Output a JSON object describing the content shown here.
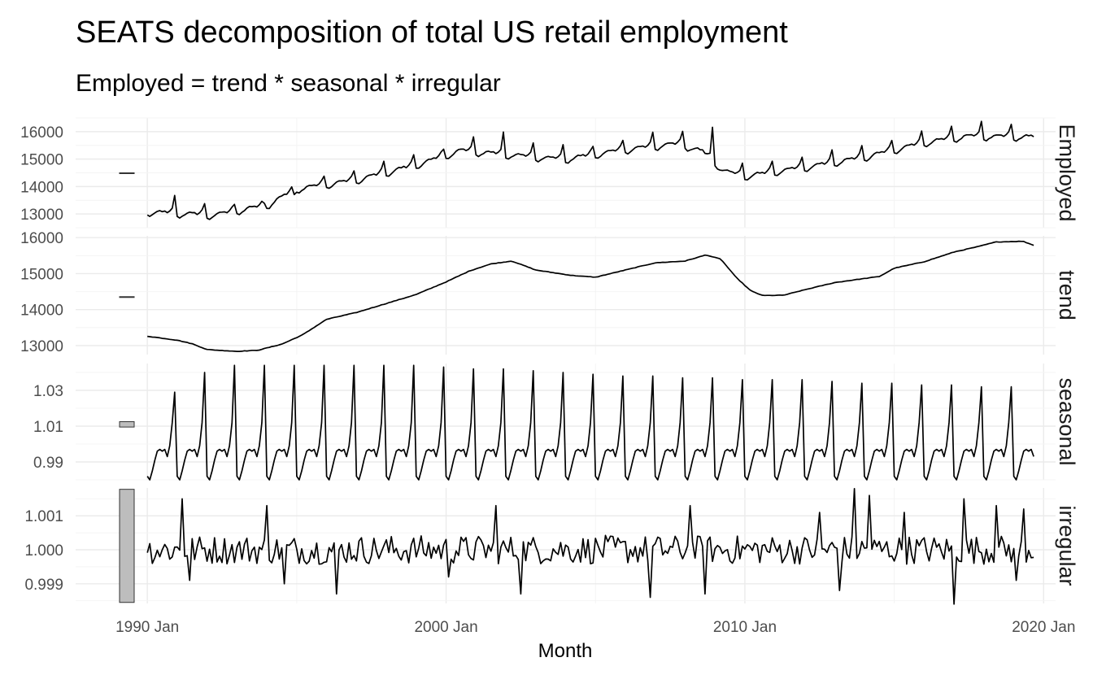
{
  "chart_data": {
    "type": "line",
    "title": "SEATS decomposition of total US retail employment",
    "subtitle": "Employed = trend * seasonal * irregular",
    "xlabel": "Month",
    "x_ticks": [
      "1990 Jan",
      "2000 Jan",
      "2010 Jan",
      "2020 Jan"
    ],
    "x_tick_years": [
      1990,
      2000,
      2010,
      2020
    ],
    "xlim": [
      1987.6,
      2020.4
    ],
    "x_start": "1990 Jan",
    "x_end": "2019 Sep",
    "grid": true,
    "legend": "none",
    "line_color": "#000000",
    "scale_bar_color": "#bdbdbd",
    "panels": [
      {
        "name": "Employed",
        "ylim": [
          12500,
          16500
        ],
        "y_ticks": [
          13000,
          14000,
          15000,
          16000
        ],
        "y_tick_labels": [
          "13000",
          "14000",
          "15000",
          "16000"
        ],
        "scale_bar": [
          14480,
          14500
        ],
        "level_knots": [
          [
            1990.0,
            12960
          ],
          [
            1992.2,
            12840
          ],
          [
            1994.0,
            13200
          ],
          [
            1995.0,
            13800
          ],
          [
            1997.0,
            14120
          ],
          [
            1999.0,
            14670
          ],
          [
            2000.5,
            15200
          ],
          [
            2002.5,
            15000
          ],
          [
            2004.0,
            14880
          ],
          [
            2006.0,
            15230
          ],
          [
            2007.8,
            15450
          ],
          [
            2008.6,
            15150
          ],
          [
            2009.3,
            14450
          ],
          [
            2010.0,
            14260
          ],
          [
            2012.0,
            14580
          ],
          [
            2014.0,
            14950
          ],
          [
            2016.0,
            15480
          ],
          [
            2017.5,
            15720
          ],
          [
            2019.7,
            15690
          ]
        ],
        "peaks": [
          [
            1990,
            13680
          ],
          [
            1991,
            13380
          ],
          [
            1992,
            13350
          ],
          [
            1993,
            13400
          ],
          [
            1994,
            13720
          ],
          [
            1995,
            14370
          ],
          [
            1996,
            14570
          ],
          [
            1997,
            14920
          ],
          [
            1998,
            15150
          ],
          [
            1999,
            15350
          ],
          [
            2000,
            15800
          ],
          [
            2001,
            15990
          ],
          [
            2002,
            15580
          ],
          [
            2003,
            15530
          ],
          [
            2004,
            15450
          ],
          [
            2005,
            15690
          ],
          [
            2006,
            15980
          ],
          [
            2007,
            16000
          ],
          [
            2008,
            16160
          ],
          [
            2009,
            14850
          ],
          [
            2010,
            14930
          ],
          [
            2011,
            15080
          ],
          [
            2012,
            15330
          ],
          [
            2013,
            15490
          ],
          [
            2014,
            15680
          ],
          [
            2015,
            16030
          ],
          [
            2016,
            16190
          ],
          [
            2017,
            16370
          ],
          [
            2018,
            16260
          ],
          [
            2019,
            16340
          ]
        ]
      },
      {
        "name": "trend",
        "ylim": [
          12750,
          16050
        ],
        "y_ticks": [
          13000,
          14000,
          15000,
          16000
        ],
        "y_tick_labels": [
          "13000",
          "14000",
          "15000",
          "16000"
        ],
        "scale_bar": [
          14340,
          14360
        ],
        "knots": [
          [
            1990.0,
            13260
          ],
          [
            1991.0,
            13150
          ],
          [
            1991.5,
            13050
          ],
          [
            1992.0,
            12890
          ],
          [
            1993.0,
            12840
          ],
          [
            1993.7,
            12870
          ],
          [
            1994.5,
            13040
          ],
          [
            1995.2,
            13300
          ],
          [
            1996.0,
            13730
          ],
          [
            1997.0,
            13920
          ],
          [
            1998.0,
            14170
          ],
          [
            1999.0,
            14420
          ],
          [
            2000.0,
            14770
          ],
          [
            2000.8,
            15080
          ],
          [
            2001.5,
            15270
          ],
          [
            2002.2,
            15350
          ],
          [
            2003.0,
            15100
          ],
          [
            2004.2,
            14950
          ],
          [
            2005.0,
            14900
          ],
          [
            2005.5,
            15000
          ],
          [
            2006.0,
            15100
          ],
          [
            2007.0,
            15300
          ],
          [
            2008.0,
            15350
          ],
          [
            2008.7,
            15520
          ],
          [
            2009.2,
            15400
          ],
          [
            2009.7,
            14900
          ],
          [
            2010.2,
            14520
          ],
          [
            2010.6,
            14390
          ],
          [
            2011.3,
            14400
          ],
          [
            2012.0,
            14550
          ],
          [
            2013.0,
            14750
          ],
          [
            2013.7,
            14830
          ],
          [
            2014.5,
            14920
          ],
          [
            2015.0,
            15150
          ],
          [
            2016.0,
            15330
          ],
          [
            2017.0,
            15600
          ],
          [
            2017.8,
            15750
          ],
          [
            2018.4,
            15880
          ],
          [
            2019.3,
            15900
          ],
          [
            2019.7,
            15780
          ],
          [
            2020.0,
            15750
          ]
        ]
      },
      {
        "name": "seasonal",
        "ylim": [
          0.98,
          1.045
        ],
        "y_ticks": [
          0.99,
          1.01,
          1.03
        ],
        "y_tick_labels": [
          "0.99",
          "1.01",
          "1.03"
        ],
        "scale_bar": [
          1.0095,
          1.0125
        ],
        "peak_by_year": [
          1.029,
          1.04,
          1.044,
          1.044,
          1.044,
          1.044,
          1.044,
          1.044,
          1.044,
          1.043,
          1.042,
          1.042,
          1.041,
          1.04,
          1.039,
          1.038,
          1.038,
          1.037,
          1.037,
          1.036,
          1.036,
          1.036,
          1.035,
          1.034,
          1.034,
          1.033,
          1.033,
          1.032,
          1.032,
          1.031
        ],
        "monthly_profile": [
          0.982,
          0.98,
          0.985,
          0.991,
          0.996,
          0.997,
          0.996,
          0.997,
          0.993,
          0.999,
          1.012,
          1.035
        ]
      },
      {
        "name": "irregular",
        "ylim": [
          0.99842,
          1.00182
        ],
        "y_ticks": [
          0.999,
          1.0,
          1.001
        ],
        "y_tick_labels": [
          "0.999",
          "1.000",
          "1.001"
        ],
        "scale_bar": [
          0.99845,
          1.00178
        ],
        "spikes": [
          [
            1991.2,
            1.0015
          ],
          [
            1991.4,
            0.9991
          ],
          [
            1994.0,
            1.0013
          ],
          [
            1994.6,
            0.999
          ],
          [
            1996.3,
            0.9987
          ],
          [
            2000.1,
            0.9992
          ],
          [
            2001.7,
            1.0013
          ],
          [
            2002.5,
            0.9987
          ],
          [
            2006.8,
            0.9986
          ],
          [
            2008.2,
            1.0013
          ],
          [
            2008.7,
            0.9987
          ],
          [
            2012.5,
            1.0011
          ],
          [
            2013.2,
            0.9988
          ],
          [
            2013.7,
            1.0018
          ],
          [
            2014.2,
            1.0016
          ],
          [
            2015.3,
            1.0011
          ],
          [
            2017.0,
            0.9984
          ],
          [
            2017.3,
            1.0015
          ],
          [
            2018.4,
            1.0013
          ],
          [
            2019.1,
            0.9991
          ],
          [
            2019.3,
            1.0012
          ]
        ]
      }
    ]
  }
}
